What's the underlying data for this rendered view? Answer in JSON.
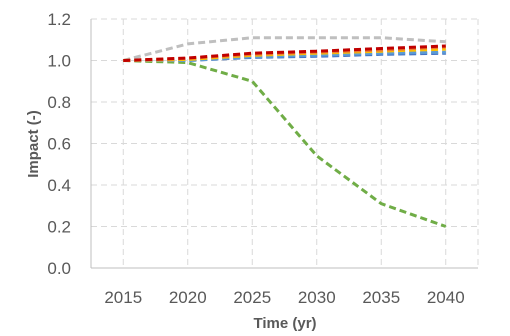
{
  "chart_data": {
    "type": "line",
    "xlabel": "Time (yr)",
    "ylabel": "Impact (-)",
    "xlim": [
      2012.5,
      2042.5
    ],
    "ylim": [
      0,
      1.2
    ],
    "x_ticks": [
      "2015",
      "2020",
      "2025",
      "2030",
      "2035",
      "2040"
    ],
    "y_ticks": [
      "0.0",
      "0.2",
      "0.4",
      "0.6",
      "0.8",
      "1.0",
      "1.2"
    ],
    "grid": true,
    "legend": "none",
    "x": [
      2015,
      2020,
      2025,
      2030,
      2035,
      2040
    ],
    "series": [
      {
        "color": "#bfbfbf",
        "values": [
          1.0,
          1.08,
          1.11,
          1.11,
          1.11,
          1.09
        ]
      },
      {
        "color": "#70ad47",
        "values": [
          1.0,
          0.99,
          0.9,
          0.54,
          0.31,
          0.2
        ]
      },
      {
        "color": "#4472c4",
        "values": [
          1.0,
          1.0,
          1.015,
          1.02,
          1.03,
          1.035
        ]
      },
      {
        "color": "#5b9bd5",
        "values": [
          1.0,
          1.0,
          1.018,
          1.025,
          1.035,
          1.04
        ]
      },
      {
        "color": "#ffc000",
        "values": [
          1.0,
          1.005,
          1.025,
          1.035,
          1.045,
          1.055
        ]
      },
      {
        "color": "#ed7d31",
        "values": [
          1.0,
          1.01,
          1.03,
          1.04,
          1.05,
          1.065
        ]
      },
      {
        "color": "#c00000",
        "values": [
          1.0,
          1.012,
          1.035,
          1.045,
          1.058,
          1.07
        ]
      }
    ]
  }
}
